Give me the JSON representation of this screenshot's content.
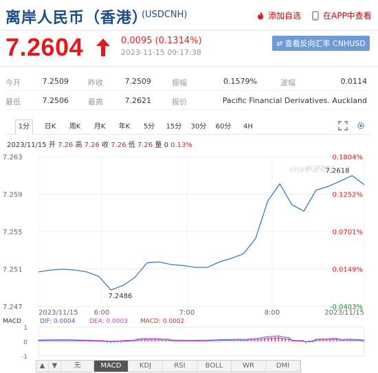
{
  "header": {
    "title": "离岸人民币（香港）",
    "code": "(USDCNH)",
    "fav_label": "添加自选",
    "app_label": "在APP中查看"
  },
  "quote": {
    "price": "7.2604",
    "change": "0.0095 (0.1314%)",
    "time": "2023-11-15 09:17:38",
    "cnh_button": "查看反向汇率 CNHUSD"
  },
  "stats": {
    "open_label": "今开",
    "open": "7.2509",
    "prev_label": "昨收",
    "prev": "7.2509",
    "amp_label": "振幅",
    "amp": "0.1579%",
    "wave_label": "波幅",
    "wave": "0.0114",
    "low_label": "最低",
    "low": "7.2506",
    "high_label": "最高",
    "high": "7.2621",
    "quote_label": "报价",
    "quote_src": "Pacific Financial Derivatives. Auckland"
  },
  "tabs": [
    {
      "label": "1分"
    },
    {
      "label": "日K"
    },
    {
      "label": "周K"
    },
    {
      "label": "月K"
    },
    {
      "label": "年K"
    },
    {
      "label": "5分"
    },
    {
      "label": "15分"
    },
    {
      "label": "30分"
    },
    {
      "label": "60分"
    },
    {
      "label": "4H"
    }
  ],
  "info": {
    "date": "2023/11/15",
    "open_k": "开",
    "open_v": "7.26",
    "high_k": "高",
    "high_v": "7.26",
    "close_k": "收",
    "close_v": "7.26",
    "low_k": "低",
    "low_v": "7.26",
    "vol_k": "量",
    "vol_v": "0",
    "pct": "0.13%"
  },
  "chart_data": {
    "type": "line",
    "x": [
      "05:00",
      "05:10",
      "05:20",
      "05:30",
      "05:40",
      "05:50",
      "06:00",
      "06:05",
      "06:10",
      "06:20",
      "06:30",
      "06:40",
      "06:50",
      "07:00",
      "07:10",
      "07:20",
      "07:30",
      "07:40",
      "07:50",
      "08:00",
      "08:10",
      "08:20",
      "08:30",
      "08:40",
      "08:50",
      "09:00",
      "09:10",
      "09:17"
    ],
    "y": [
      7.2508,
      7.251,
      7.2511,
      7.251,
      7.2508,
      7.2503,
      7.2488,
      7.2493,
      7.2502,
      7.2518,
      7.2519,
      7.2516,
      7.2515,
      7.2513,
      7.2513,
      7.2519,
      7.2523,
      7.2528,
      7.2545,
      7.2586,
      7.2605,
      7.2582,
      7.2575,
      7.2598,
      7.2602,
      7.2608,
      7.2614,
      7.2604
    ],
    "ylim": [
      7.247,
      7.2635
    ],
    "y_ticks": [
      "7.263",
      "7.259",
      "7.255",
      "7.251",
      "7.247"
    ],
    "pct_ticks": [
      "0.1804%",
      "0.1252%",
      "0.0701%",
      "0.0149%",
      "-0.0403%"
    ],
    "x_ticks": [
      "2023/11/15",
      "6:00",
      "7:00",
      "8:00",
      "2023/11/15"
    ],
    "max_label": "7.2618",
    "min_label": "7.2486",
    "watermark": "sina新浪财经",
    "colors": {
      "line": "#2b6fb6",
      "up": "#e41a1a",
      "down": "#0a9a2a"
    }
  },
  "macd": {
    "title": "MACD",
    "dif_label": "DIF: 0.0004",
    "dea_label": "DEA: 0.0003",
    "macd_label": "MACD: 0.0002",
    "y_ticks": [
      "1",
      "0",
      "-1"
    ],
    "colors": {
      "dif": "#3b5fd9",
      "dea": "#d23bd2",
      "macd": "#c0392b"
    }
  },
  "bottom": {
    "up": "▲",
    "down": "▼",
    "buttons": [
      "无",
      "MACD",
      "KDJ",
      "RSI",
      "BOLL",
      "WR",
      "DMI"
    ]
  }
}
